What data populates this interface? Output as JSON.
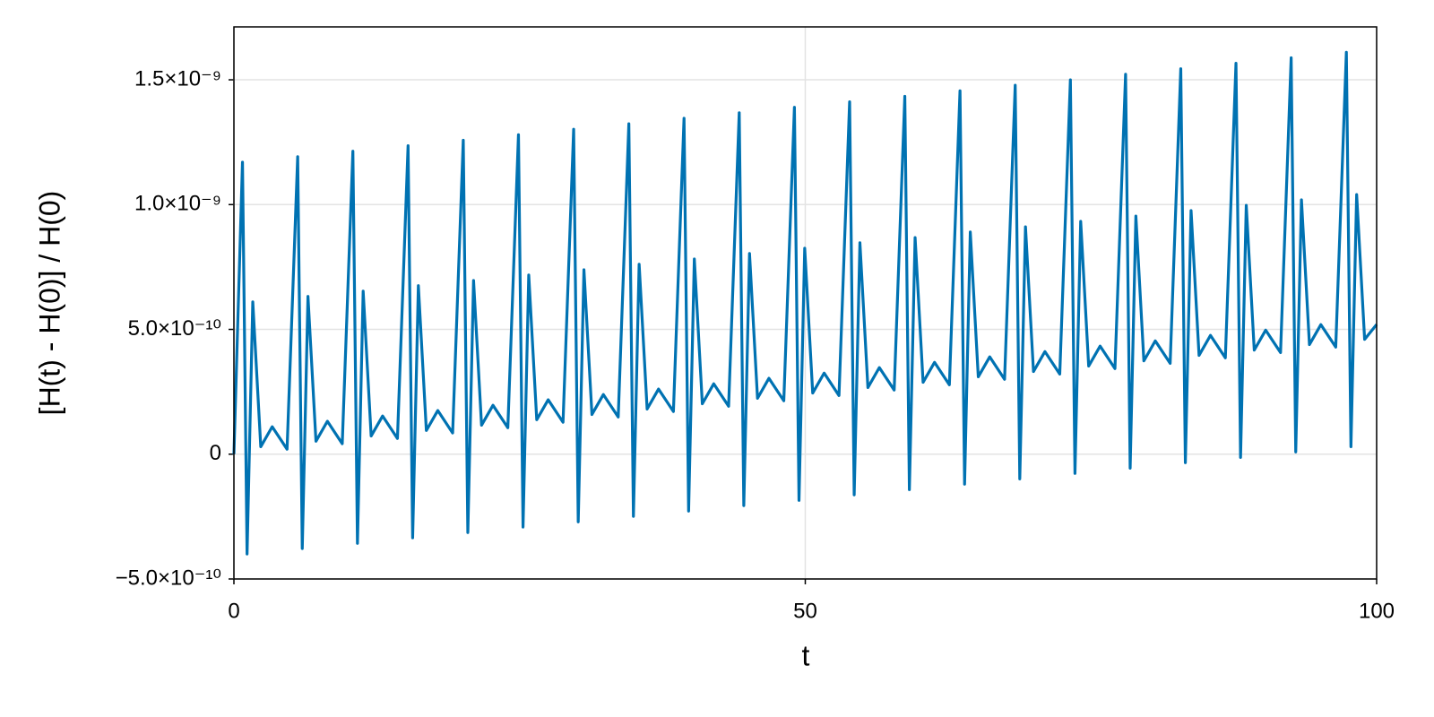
{
  "chart_data": {
    "type": "line",
    "xlabel": "t",
    "ylabel": "[H(t) - H(0)] / H(0)",
    "xlim": [
      0,
      100
    ],
    "xticks": [
      0,
      50,
      100
    ],
    "ylim": [
      -5e-10,
      1.712e-09
    ],
    "yticks": [
      {
        "value": -5e-10,
        "label": "−5.0×10⁻¹⁰"
      },
      0,
      {
        "value": 5e-10,
        "label": "5.0×10⁻¹⁰"
      },
      {
        "value": 1e-09,
        "label": "1.0×10⁻⁹"
      },
      {
        "value": 1.5e-09,
        "label": "1.5×10⁻⁹"
      }
    ],
    "grid": true,
    "series": [
      {
        "color": "#0072b2",
        "x": [
          0,
          0.75,
          1.15,
          1.65,
          2.35,
          3.35,
          4.65,
          5.58,
          5.98,
          6.48,
          7.18,
          8.18,
          9.48,
          10.41,
          10.81,
          11.31,
          12.01,
          13.01,
          14.31,
          15.24,
          15.64,
          16.14,
          16.84,
          17.84,
          19.14,
          20.07,
          20.47,
          20.97,
          21.67,
          22.67,
          23.97,
          24.9,
          25.3,
          25.8,
          26.5,
          27.5,
          28.8,
          29.73,
          30.13,
          30.63,
          31.33,
          32.33,
          33.63,
          34.56,
          34.96,
          35.46,
          36.16,
          37.16,
          38.46,
          39.39,
          39.79,
          40.29,
          40.99,
          41.99,
          43.29,
          44.22,
          44.62,
          45.12,
          45.82,
          46.82,
          48.12,
          49.05,
          49.45,
          49.95,
          50.65,
          51.65,
          52.95,
          53.88,
          54.28,
          54.78,
          55.48,
          56.48,
          57.78,
          58.71,
          59.11,
          59.61,
          60.31,
          61.31,
          62.61,
          63.54,
          63.94,
          64.44,
          65.14,
          66.14,
          67.44,
          68.37,
          68.77,
          69.27,
          69.97,
          70.97,
          72.27,
          73.2,
          73.6,
          74.1,
          74.8,
          75.8,
          77.1,
          78.03,
          78.43,
          78.93,
          79.63,
          80.63,
          81.93,
          82.86,
          83.26,
          83.76,
          84.46,
          85.46,
          86.76,
          87.69,
          88.09,
          88.59,
          89.29,
          90.29,
          91.59,
          92.52,
          92.92,
          93.42,
          94.12,
          95.12,
          96.42,
          97.35,
          97.75,
          98.25,
          98.95,
          100
        ],
        "values": [
          0,
          1.17e-09,
          -4e-10,
          6.1e-10,
          3e-11,
          1.1e-10,
          2e-11,
          1.192e-09,
          -3.78e-10,
          6.32e-10,
          5.2e-11,
          1.32e-10,
          4.2e-11,
          1.214e-09,
          -3.57e-10,
          6.53e-10,
          7.3e-11,
          1.53e-10,
          6.3e-11,
          1.236e-09,
          -3.35e-10,
          6.75e-10,
          9.5e-11,
          1.75e-10,
          8.5e-11,
          1.258e-09,
          -3.14e-10,
          6.96e-10,
          1.16e-10,
          1.96e-10,
          1.06e-10,
          1.28e-09,
          -2.92e-10,
          7.18e-10,
          1.38e-10,
          2.18e-10,
          1.28e-10,
          1.302e-09,
          -2.71e-10,
          7.39e-10,
          1.59e-10,
          2.39e-10,
          1.49e-10,
          1.324e-09,
          -2.49e-10,
          7.61e-10,
          1.81e-10,
          2.61e-10,
          1.71e-10,
          1.346e-09,
          -2.28e-10,
          7.82e-10,
          2.02e-10,
          2.82e-10,
          1.92e-10,
          1.368e-09,
          -2.06e-10,
          8.04e-10,
          2.24e-10,
          3.04e-10,
          2.14e-10,
          1.39e-09,
          -1.85e-10,
          8.25e-10,
          2.45e-10,
          3.25e-10,
          2.35e-10,
          1.412e-09,
          -1.63e-10,
          8.47e-10,
          2.67e-10,
          3.47e-10,
          2.57e-10,
          1.434e-09,
          -1.42e-10,
          8.68e-10,
          2.88e-10,
          3.68e-10,
          2.78e-10,
          1.456e-09,
          -1.2e-10,
          8.9e-10,
          3.1e-10,
          3.9e-10,
          3e-10,
          1.478e-09,
          -9.9e-11,
          9.11e-10,
          3.31e-10,
          4.11e-10,
          3.21e-10,
          1.5e-09,
          -7.7e-11,
          9.33e-10,
          3.53e-10,
          4.33e-10,
          3.43e-10,
          1.522e-09,
          -5.6e-11,
          9.54e-10,
          3.74e-10,
          4.54e-10,
          3.64e-10,
          1.544e-09,
          -3.4e-11,
          9.76e-10,
          3.96e-10,
          4.76e-10,
          3.86e-10,
          1.566e-09,
          -1.3e-11,
          9.97e-10,
          4.17e-10,
          4.97e-10,
          4.07e-10,
          1.588e-09,
          9e-12,
          1.019e-09,
          4.39e-10,
          5.19e-10,
          4.29e-10,
          1.61e-09,
          3e-11,
          1.04e-09,
          4.6e-10,
          5.2e-10
        ]
      }
    ]
  }
}
